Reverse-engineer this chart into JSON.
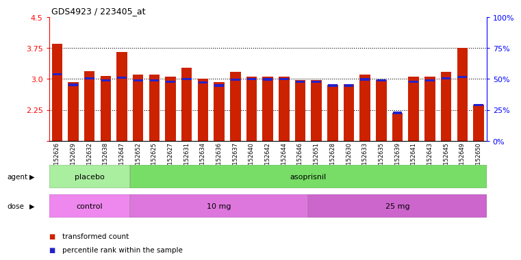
{
  "title": "GDS4923 / 223405_at",
  "samples": [
    "GSM1152626",
    "GSM1152629",
    "GSM1152632",
    "GSM1152638",
    "GSM1152647",
    "GSM1152652",
    "GSM1152625",
    "GSM1152627",
    "GSM1152631",
    "GSM1152634",
    "GSM1152636",
    "GSM1152637",
    "GSM1152640",
    "GSM1152642",
    "GSM1152644",
    "GSM1152646",
    "GSM1152651",
    "GSM1152628",
    "GSM1152630",
    "GSM1152633",
    "GSM1152635",
    "GSM1152639",
    "GSM1152641",
    "GSM1152643",
    "GSM1152645",
    "GSM1152649",
    "GSM1152650"
  ],
  "red_values": [
    3.85,
    2.92,
    3.19,
    3.07,
    3.65,
    3.1,
    3.1,
    3.05,
    3.27,
    3.0,
    2.92,
    3.17,
    3.05,
    3.05,
    3.05,
    2.97,
    2.97,
    2.85,
    2.87,
    3.1,
    2.97,
    2.18,
    3.05,
    3.05,
    3.18,
    3.75,
    2.38
  ],
  "blue_values": [
    3.12,
    2.86,
    3.02,
    2.97,
    3.03,
    2.97,
    2.97,
    2.93,
    3.0,
    2.92,
    2.84,
    2.98,
    3.0,
    2.99,
    3.0,
    2.93,
    2.93,
    2.84,
    2.84,
    2.99,
    2.97,
    2.18,
    2.93,
    2.97,
    3.02,
    3.05,
    2.37
  ],
  "ymin": 1.5,
  "ymax": 4.5,
  "yticks": [
    1.5,
    2.25,
    3.0,
    3.75,
    4.5
  ],
  "right_yticks": [
    0,
    25,
    50,
    75,
    100
  ],
  "right_yticklabels": [
    "0%",
    "25%",
    "50%",
    "75%",
    "100%"
  ],
  "bar_color": "#CC2200",
  "blue_color": "#2222CC",
  "agent_groups": [
    {
      "label": "placebo",
      "start": 0,
      "end": 5,
      "color": "#AAEEA0"
    },
    {
      "label": "asoprisnil",
      "start": 5,
      "end": 27,
      "color": "#77DD66"
    }
  ],
  "dose_groups": [
    {
      "label": "control",
      "start": 0,
      "end": 5,
      "color": "#EE88EE"
    },
    {
      "label": "10 mg",
      "start": 5,
      "end": 16,
      "color": "#DD77DD"
    },
    {
      "label": "25 mg",
      "start": 16,
      "end": 27,
      "color": "#CC66CC"
    }
  ],
  "legend_red": "transformed count",
  "legend_blue": "percentile rank within the sample",
  "grid_yticks": [
    2.25,
    3.0,
    3.75
  ]
}
